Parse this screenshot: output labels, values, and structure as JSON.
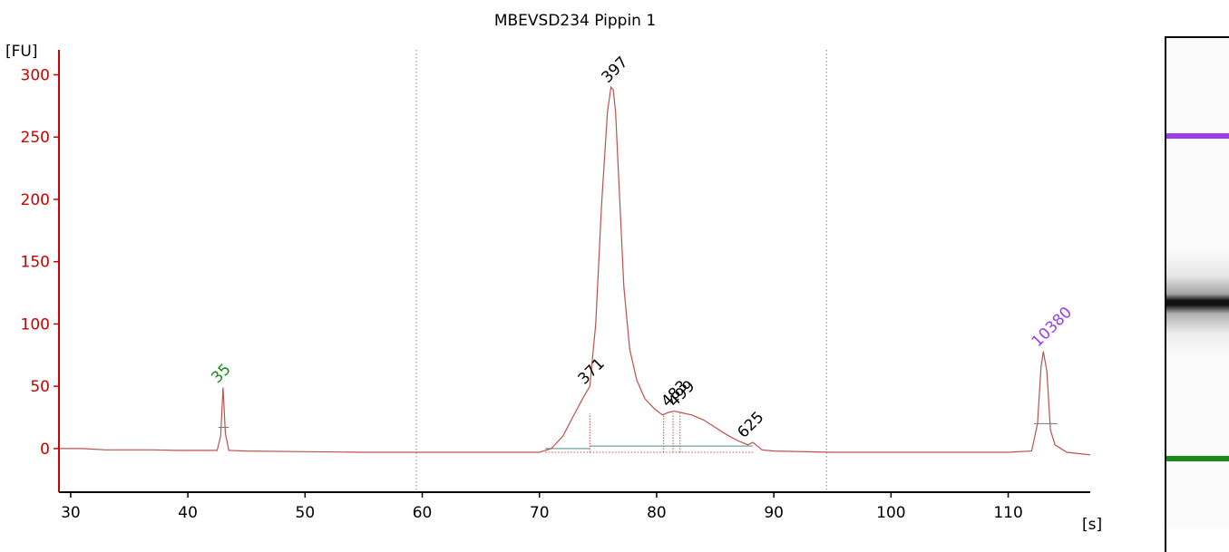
{
  "colors": {
    "axis": "#cc0000",
    "trace": "#c0504d",
    "baseline": "#6aa6a0",
    "lower_marker": "#1a8a1a",
    "upper_marker": "#9b3ee8",
    "peak_label": "#000000"
  },
  "chart_data": {
    "type": "line",
    "title": "MBEVSD234 Pippin 1",
    "ylabel": "[FU]",
    "xlabel": "[s]",
    "xlim": [
      29,
      117
    ],
    "ylim": [
      -35,
      320
    ],
    "xticks": [
      30,
      40,
      50,
      60,
      70,
      80,
      90,
      100,
      110
    ],
    "yticks": [
      0,
      50,
      100,
      150,
      200,
      250,
      300
    ],
    "region_lines": [
      59.5,
      94.5
    ],
    "series": [
      {
        "x": [
          29,
          31,
          33,
          35,
          37,
          39,
          41,
          42.5,
          42.8,
          43.0,
          43.2,
          43.5,
          45,
          50,
          55,
          60,
          65,
          70,
          71,
          72,
          73,
          73.8,
          74.3,
          74.8,
          75.3,
          75.8,
          76.1,
          76.3,
          76.5,
          76.8,
          77.2,
          77.7,
          78.3,
          79,
          79.8,
          80.5,
          81,
          81.5,
          82,
          83,
          84,
          85,
          86,
          87,
          87.8,
          88.2,
          89,
          90,
          95,
          100,
          105,
          110,
          112,
          112.5,
          112.8,
          113.0,
          113.3,
          113.6,
          114,
          115,
          116,
          117
        ],
        "y": [
          0,
          0,
          -1,
          -1,
          -1,
          -1.5,
          -1.5,
          -1.5,
          10,
          49,
          12,
          -1.5,
          -2,
          -2.5,
          -3,
          -3,
          -3,
          -3,
          0,
          10,
          28,
          42,
          50,
          100,
          195,
          270,
          290,
          288,
          270,
          210,
          130,
          80,
          55,
          40,
          32,
          27,
          29,
          30,
          29,
          27,
          23,
          17,
          11,
          6,
          3,
          5,
          -1,
          -2,
          -3,
          -3,
          -3,
          -3,
          -2,
          20,
          65,
          78,
          62,
          15,
          3,
          -3,
          -4,
          -5
        ]
      }
    ],
    "baselines": [
      {
        "x": [
          70.5,
          74.3
        ],
        "y": 0
      },
      {
        "x": [
          74.3,
          88.2
        ],
        "y": 2
      }
    ],
    "peaks": [
      {
        "label": "35",
        "x": 43.0,
        "y": 49,
        "marker": "lower"
      },
      {
        "label": "371",
        "x": 74.3,
        "y": 48,
        "marker": "none"
      },
      {
        "label": "397",
        "x": 76.3,
        "y": 290,
        "marker": "none"
      },
      {
        "label": "483",
        "x": 81.4,
        "y": 30,
        "marker": "none"
      },
      {
        "label": "499",
        "x": 82.0,
        "y": 30,
        "marker": "none"
      },
      {
        "label": "625",
        "x": 87.9,
        "y": 5,
        "marker": "none"
      },
      {
        "label": "10380",
        "x": 113.0,
        "y": 78,
        "marker": "upper"
      }
    ],
    "marker_ticks": [
      {
        "x": [
          42.6,
          43.5
        ],
        "y": 17
      },
      {
        "x": [
          112.2,
          114.2
        ],
        "y": 20
      }
    ],
    "peak_drop_lines": [
      74.3,
      80.6,
      81.4,
      82.0
    ],
    "legend": "none",
    "grid": false
  },
  "gel": {
    "bands": [
      {
        "name": "upper-marker",
        "color": "#9b3ee8",
        "position": 0.2
      },
      {
        "name": "main-band",
        "color": "#111111",
        "position": 0.54
      },
      {
        "name": "lower-marker",
        "color": "#1a8a1a",
        "position": 0.86
      }
    ]
  }
}
